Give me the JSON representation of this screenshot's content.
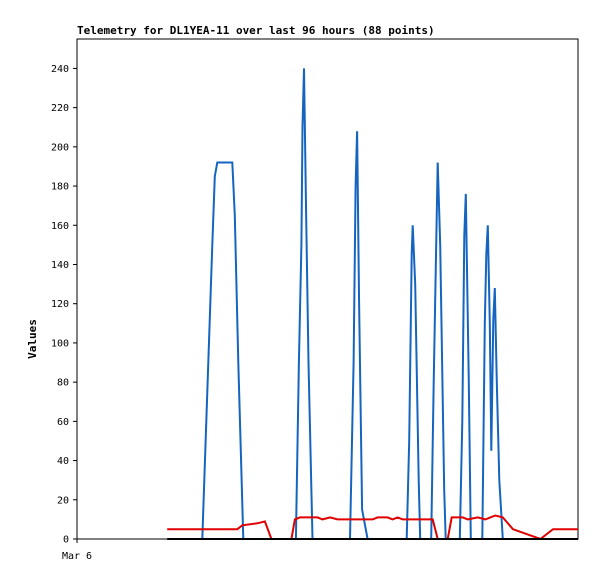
{
  "chart_data": {
    "type": "line",
    "title": "Telemetry for DL1YEA-11 over last 96 hours (88 points)",
    "xlabel": "",
    "ylabel": "Values",
    "x_ticks": [
      {
        "label": "Mar 6",
        "x": 0
      }
    ],
    "xlim": [
      0,
      100
    ],
    "ylim": [
      0,
      255
    ],
    "y_ticks": [
      0,
      20,
      40,
      60,
      80,
      100,
      120,
      140,
      160,
      180,
      200,
      220,
      240
    ],
    "grid": false,
    "legend": "none",
    "series": [
      {
        "color": "#1565c0",
        "points": [
          [
            21.5,
            0
          ],
          [
            25.0,
            0
          ],
          [
            26.2,
            90
          ],
          [
            27.0,
            150
          ],
          [
            27.5,
            185
          ],
          [
            28.0,
            192
          ],
          [
            31.0,
            192
          ],
          [
            31.5,
            165
          ],
          [
            32.2,
            90
          ],
          [
            33.2,
            0
          ],
          [
            43.7,
            0
          ],
          [
            44.3,
            90
          ],
          [
            44.8,
            150
          ],
          [
            45.0,
            210
          ],
          [
            45.3,
            240
          ],
          [
            45.7,
            170
          ],
          [
            46.2,
            90
          ],
          [
            47.0,
            0
          ],
          [
            54.5,
            0
          ],
          [
            55.2,
            90
          ],
          [
            55.6,
            180
          ],
          [
            55.9,
            208
          ],
          [
            56.3,
            120
          ],
          [
            56.9,
            15
          ],
          [
            58.0,
            0
          ],
          [
            65.8,
            0
          ],
          [
            66.3,
            50
          ],
          [
            66.8,
            145
          ],
          [
            67.0,
            160
          ],
          [
            67.5,
            130
          ],
          [
            68.2,
            30
          ],
          [
            68.5,
            0
          ],
          [
            70.7,
            0
          ],
          [
            71.2,
            80
          ],
          [
            71.7,
            150
          ],
          [
            72.0,
            192
          ],
          [
            72.5,
            150
          ],
          [
            73.3,
            25
          ],
          [
            73.6,
            0
          ],
          [
            76.4,
            0
          ],
          [
            76.9,
            60
          ],
          [
            77.3,
            155
          ],
          [
            77.6,
            176
          ],
          [
            78.2,
            80
          ],
          [
            78.6,
            0
          ],
          [
            80.9,
            0
          ],
          [
            81.4,
            110
          ],
          [
            81.7,
            145
          ],
          [
            82.0,
            160
          ],
          [
            82.4,
            110
          ],
          [
            82.7,
            45
          ],
          [
            83.1,
            112
          ],
          [
            83.4,
            128
          ],
          [
            83.8,
            80
          ],
          [
            84.3,
            30
          ],
          [
            85.0,
            0
          ]
        ]
      },
      {
        "color": "#e00000",
        "points": [
          [
            18.0,
            5
          ],
          [
            29.0,
            5
          ],
          [
            32.0,
            5
          ],
          [
            33.0,
            7
          ],
          [
            36.0,
            8
          ],
          [
            37.5,
            9
          ],
          [
            38.8,
            0
          ],
          [
            42.8,
            0
          ],
          [
            43.5,
            10
          ],
          [
            44.5,
            11
          ],
          [
            48.0,
            11
          ],
          [
            49.0,
            10
          ],
          [
            50.5,
            11
          ],
          [
            52.0,
            10
          ],
          [
            59.0,
            10
          ],
          [
            60.0,
            11
          ],
          [
            62.0,
            11
          ],
          [
            63.0,
            10
          ],
          [
            64.0,
            11
          ],
          [
            65.0,
            10
          ],
          [
            71.0,
            10
          ],
          [
            72.0,
            0
          ],
          [
            74.0,
            0
          ],
          [
            74.8,
            11
          ],
          [
            77.0,
            11
          ],
          [
            78.0,
            10
          ],
          [
            80.0,
            11
          ],
          [
            81.5,
            10
          ],
          [
            82.5,
            11
          ],
          [
            83.5,
            12
          ],
          [
            85.0,
            11
          ],
          [
            87.0,
            5
          ],
          [
            92.5,
            0
          ],
          [
            95.0,
            5
          ],
          [
            98.0,
            5
          ],
          [
            100.0,
            5
          ]
        ]
      },
      {
        "color": "#000000",
        "points": [
          [
            18.0,
            0
          ],
          [
            100.0,
            0
          ]
        ]
      }
    ]
  }
}
